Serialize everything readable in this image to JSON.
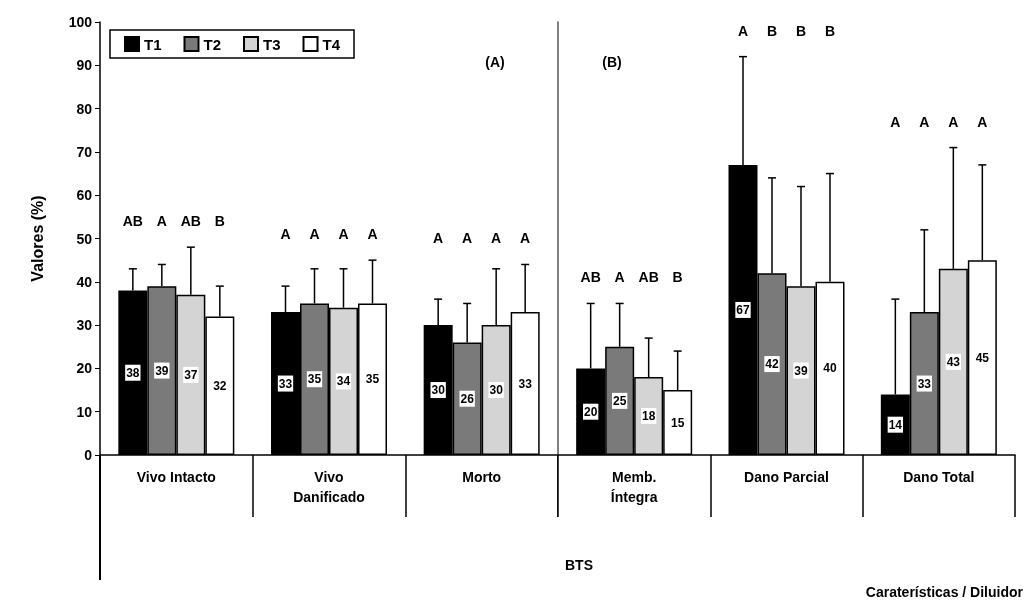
{
  "chart_data": [
    {
      "type": "bar",
      "ylabel": "Valores (%)",
      "categories": [
        "Vivo Intacto",
        "Vivo\nDanificado",
        "Morto"
      ],
      "series": [
        {
          "name": "T1",
          "color": "#000000",
          "values": [
            38,
            33,
            30
          ],
          "errors": [
            [
              38,
              43
            ],
            [
              33,
              39
            ],
            [
              30,
              36
            ]
          ]
        },
        {
          "name": "T2",
          "color": "#7a7a7a",
          "values": [
            39,
            35,
            26
          ],
          "errors": [
            [
              39,
              44
            ],
            [
              35,
              43
            ],
            [
              26,
              35
            ]
          ]
        },
        {
          "name": "T3",
          "color": "#d4d4d4",
          "values": [
            37,
            34,
            30
          ],
          "errors": [
            [
              37,
              48
            ],
            [
              34,
              43
            ],
            [
              30,
              43
            ]
          ]
        },
        {
          "name": "T4",
          "color": "#ffffff",
          "values": [
            32,
            35,
            33
          ],
          "errors": [
            [
              32,
              39
            ],
            [
              35,
              45
            ],
            [
              33,
              44
            ]
          ]
        }
      ],
      "data_labels": true,
      "ylim": [
        0,
        100
      ],
      "yticks": [
        0,
        10,
        20,
        30,
        40,
        50,
        60,
        70,
        80,
        90,
        100
      ],
      "grid": false,
      "legend": "top left",
      "annotations": [
        "AB",
        "A",
        "AB",
        "B",
        "A",
        "A",
        "A",
        "A",
        "A",
        "A",
        "A",
        "A",
        "(A)"
      ]
    },
    {
      "type": "bar",
      "categories": [
        "Memb.\nÍntegra",
        "Dano Parcial",
        "Dano Total"
      ],
      "series": [
        {
          "color": "#000000",
          "values": [
            20,
            67,
            14
          ],
          "errors": [
            [
              20,
              35
            ],
            [
              67,
              92
            ],
            [
              14,
              36
            ]
          ]
        },
        {
          "color": "#7a7a7a",
          "values": [
            25,
            42,
            33
          ],
          "errors": [
            [
              25,
              35
            ],
            [
              42,
              64
            ],
            [
              33,
              52
            ]
          ]
        },
        {
          "color": "#d4d4d4",
          "values": [
            18,
            39,
            43
          ],
          "errors": [
            [
              18,
              27
            ],
            [
              39,
              62
            ],
            [
              43,
              71
            ]
          ]
        },
        {
          "color": "#ffffff",
          "values": [
            15,
            40,
            45
          ],
          "errors": [
            [
              15,
              24
            ],
            [
              40,
              65
            ],
            [
              45,
              67
            ]
          ]
        }
      ],
      "data_labels": true,
      "ylim": [
        0,
        100
      ],
      "yticks": [
        0,
        10,
        20,
        30,
        40,
        50,
        60,
        70,
        80,
        90,
        100
      ],
      "tick_labels": "x",
      "grid": false,
      "annotations": [
        "AB",
        "A",
        "AB",
        "B",
        "A",
        "B",
        "B",
        "B",
        "A",
        "A",
        "A",
        "A",
        "(B)",
        "BTS",
        "Caraterísticas / Diluidor"
      ]
    }
  ]
}
